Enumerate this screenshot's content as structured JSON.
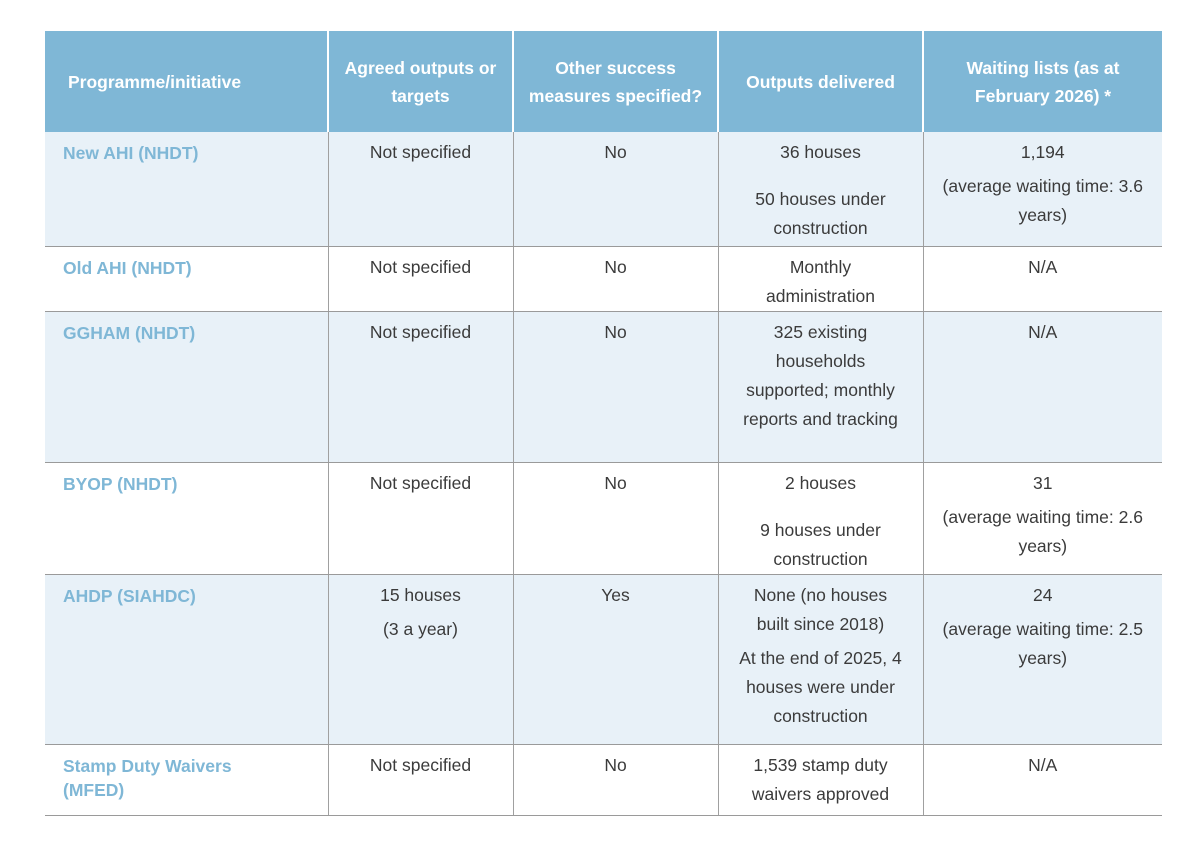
{
  "table": {
    "headers": [
      "Programme/initiative",
      "Agreed outputs or targets",
      "Other success measures specified?",
      "Outputs delivered",
      "Waiting lists (as at February 2026) *"
    ],
    "rows": [
      {
        "programme": "New AHI (NHDT)",
        "targets": [
          "Not specified"
        ],
        "measures": "No",
        "outputs": [
          "36 houses",
          "50 houses under construction"
        ],
        "waiting": [
          "1,194",
          "(average waiting time: 3.6 years)"
        ]
      },
      {
        "programme": "Old AHI (NHDT)",
        "targets": [
          "Not specified"
        ],
        "measures": "No",
        "outputs": [
          "Monthly administration"
        ],
        "waiting": [
          "N/A"
        ]
      },
      {
        "programme": "GGHAM (NHDT)",
        "targets": [
          "Not specified"
        ],
        "measures": "No",
        "outputs": [
          "325 existing households supported; monthly reports and tracking"
        ],
        "waiting": [
          "N/A"
        ]
      },
      {
        "programme": "BYOP (NHDT)",
        "targets": [
          "Not specified"
        ],
        "measures": "No",
        "outputs": [
          "2 houses",
          "9 houses under construction"
        ],
        "waiting": [
          "31",
          "(average waiting time: 2.6 years)"
        ]
      },
      {
        "programme": "AHDP (SIAHDC)",
        "targets": [
          "15 houses",
          "(3 a year)"
        ],
        "measures": "Yes",
        "outputs": [
          "None (no houses built since 2018)",
          "At the end of 2025, 4 houses were under construction"
        ],
        "waiting": [
          "24",
          "(average waiting time: 2.5 years)"
        ]
      },
      {
        "programme": "Stamp Duty Waivers (MFED)",
        "targets": [
          "Not specified"
        ],
        "measures": "No",
        "outputs": [
          "1,539 stamp duty waivers approved"
        ],
        "waiting": [
          "N/A"
        ]
      }
    ],
    "colors": {
      "header_bg": "#7fb7d6",
      "row_shade": "#e8f1f8",
      "programme_text": "#7fb7d6"
    }
  }
}
